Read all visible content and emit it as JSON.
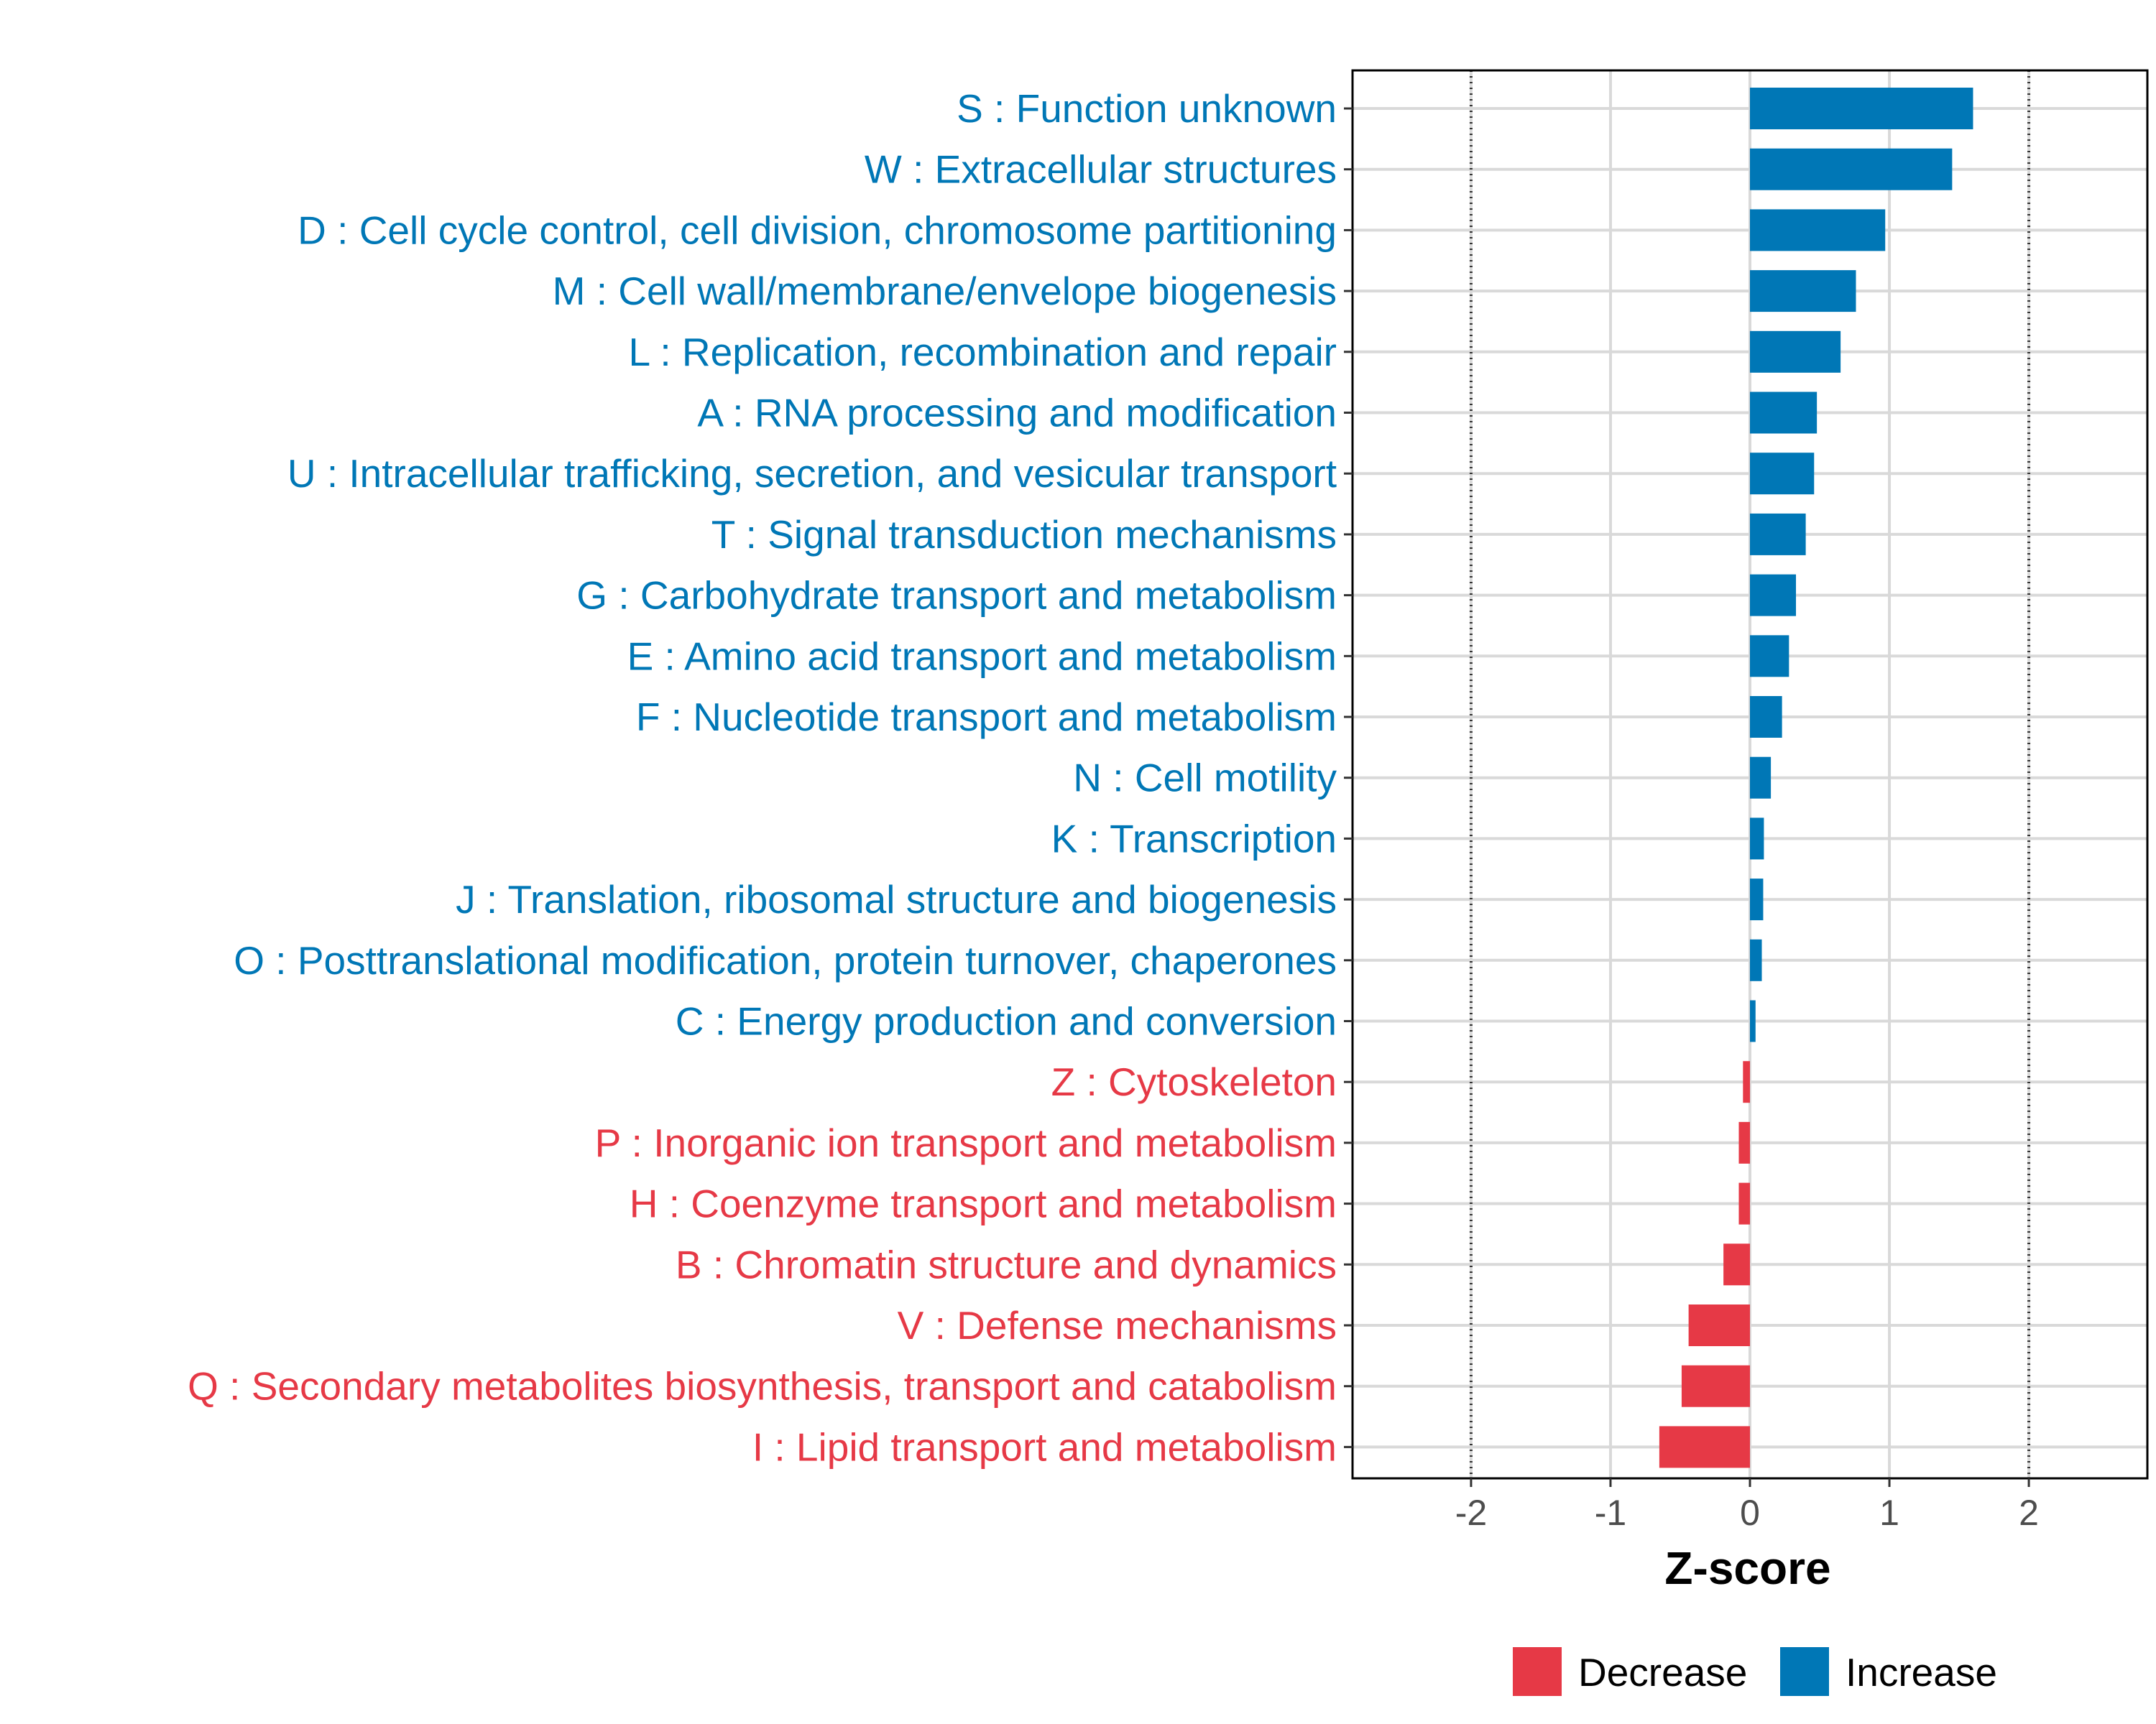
{
  "chart_data": {
    "type": "bar",
    "orientation": "horizontal",
    "xlabel": "Z-score",
    "xlim": [
      -2.85,
      2.85
    ],
    "x_ticks": [
      -2,
      -1,
      0,
      1,
      2
    ],
    "x_tick_labels": [
      "-2",
      "-1",
      "0",
      "1",
      "2"
    ],
    "reference_lines": [
      -2,
      2
    ],
    "grid": true,
    "legend_position": "bottom",
    "colors": {
      "Decrease": "#e63946",
      "Increase": "#0077b6"
    },
    "legend": [
      {
        "name": "Decrease",
        "color": "#e63946"
      },
      {
        "name": "Increase",
        "color": "#0077b6"
      }
    ],
    "bars": [
      {
        "label": "S : Function unknown",
        "value": 1.6,
        "group": "Increase"
      },
      {
        "label": "W : Extracellular structures",
        "value": 1.45,
        "group": "Increase"
      },
      {
        "label": "D : Cell cycle control, cell division, chromosome partitioning",
        "value": 0.97,
        "group": "Increase"
      },
      {
        "label": "M : Cell wall/membrane/envelope biogenesis",
        "value": 0.76,
        "group": "Increase"
      },
      {
        "label": "L : Replication, recombination and repair",
        "value": 0.65,
        "group": "Increase"
      },
      {
        "label": "A : RNA processing and modification",
        "value": 0.48,
        "group": "Increase"
      },
      {
        "label": "U : Intracellular trafficking, secretion, and vesicular transport",
        "value": 0.46,
        "group": "Increase"
      },
      {
        "label": "T : Signal transduction mechanisms",
        "value": 0.4,
        "group": "Increase"
      },
      {
        "label": "G : Carbohydrate transport and metabolism",
        "value": 0.33,
        "group": "Increase"
      },
      {
        "label": "E : Amino acid transport and metabolism",
        "value": 0.28,
        "group": "Increase"
      },
      {
        "label": "F : Nucleotide transport and metabolism",
        "value": 0.23,
        "group": "Increase"
      },
      {
        "label": "N : Cell motility",
        "value": 0.15,
        "group": "Increase"
      },
      {
        "label": "K : Transcription",
        "value": 0.1,
        "group": "Increase"
      },
      {
        "label": "J : Translation, ribosomal structure and biogenesis",
        "value": 0.095,
        "group": "Increase"
      },
      {
        "label": "O : Posttranslational modification, protein turnover, chaperones",
        "value": 0.085,
        "group": "Increase"
      },
      {
        "label": "C : Energy production and conversion",
        "value": 0.04,
        "group": "Increase"
      },
      {
        "label": "Z : Cytoskeleton",
        "value": -0.05,
        "group": "Decrease"
      },
      {
        "label": "P : Inorganic ion transport and metabolism",
        "value": -0.08,
        "group": "Decrease"
      },
      {
        "label": "H : Coenzyme transport and metabolism",
        "value": -0.08,
        "group": "Decrease"
      },
      {
        "label": "B : Chromatin structure and dynamics",
        "value": -0.19,
        "group": "Decrease"
      },
      {
        "label": "V : Defense mechanisms",
        "value": -0.44,
        "group": "Decrease"
      },
      {
        "label": "Q : Secondary metabolites biosynthesis, transport and catabolism",
        "value": -0.49,
        "group": "Decrease"
      },
      {
        "label": "I : Lipid transport and metabolism",
        "value": -0.65,
        "group": "Decrease"
      }
    ]
  }
}
